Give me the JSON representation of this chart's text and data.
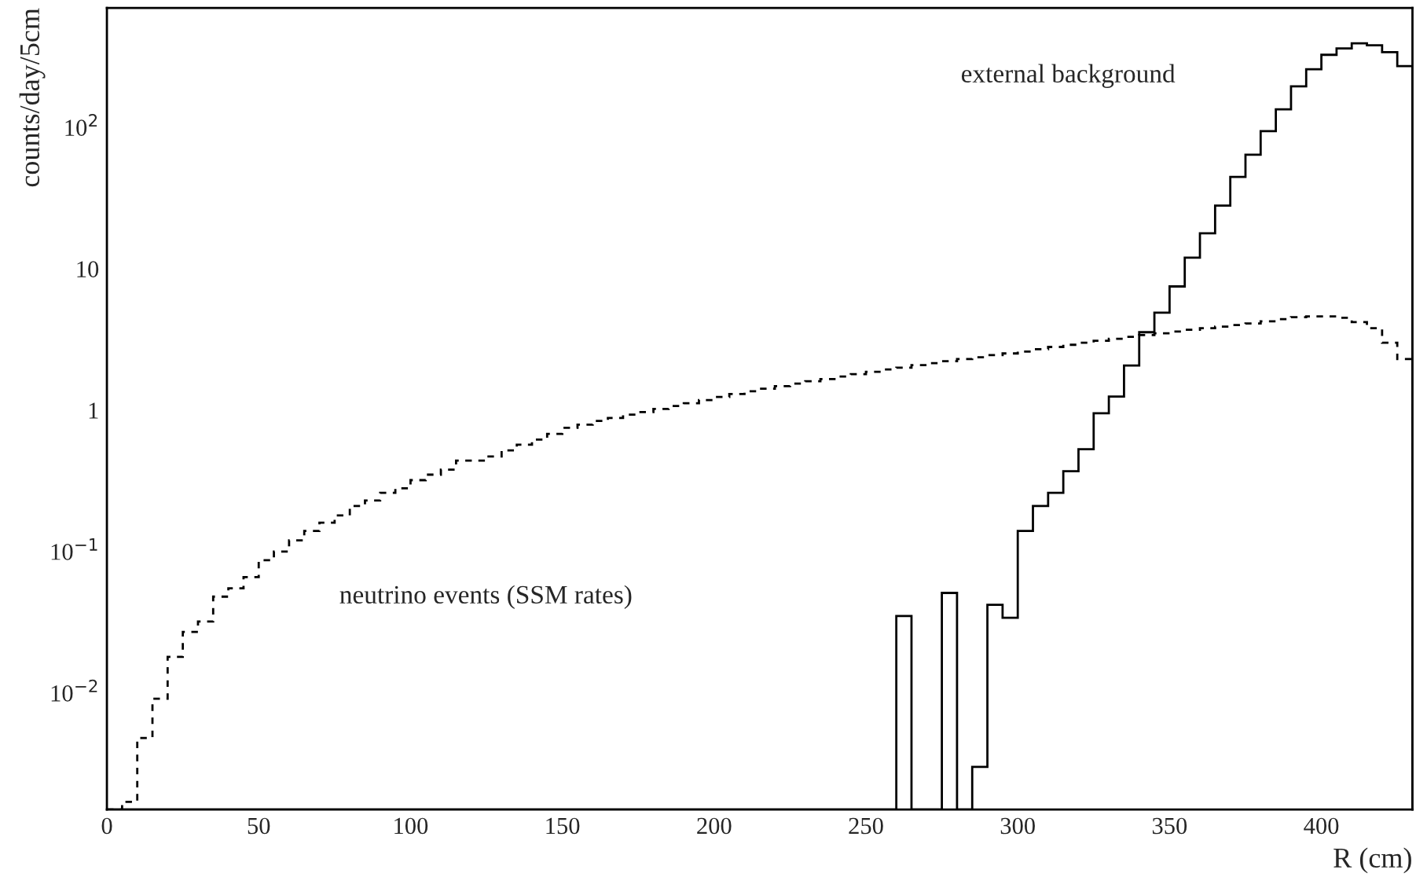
{
  "chart_data": {
    "type": "histogram",
    "xlabel": "R (cm)",
    "ylabel": "counts/day/5cm",
    "bins": [
      0,
      5,
      10,
      15,
      20,
      25,
      30,
      35,
      40,
      45,
      50,
      55,
      60,
      65,
      70,
      75,
      80,
      85,
      90,
      95,
      100,
      105,
      110,
      115,
      120,
      125,
      130,
      135,
      140,
      145,
      150,
      155,
      160,
      165,
      170,
      175,
      180,
      185,
      190,
      195,
      200,
      205,
      210,
      215,
      220,
      225,
      230,
      235,
      240,
      245,
      250,
      255,
      260,
      265,
      270,
      275,
      280,
      285,
      290,
      295,
      300,
      305,
      310,
      315,
      320,
      325,
      330,
      335,
      340,
      345,
      350,
      355,
      360,
      365,
      370,
      375,
      380,
      385,
      390,
      395,
      400,
      405,
      410,
      415,
      420,
      425,
      430
    ],
    "series": [
      {
        "color": "#000000",
        "line_style": "dashed",
        "values": [
          null,
          0.0017,
          0.0048,
          0.0091,
          0.018,
          0.027,
          0.032,
          0.048,
          0.055,
          0.066,
          0.087,
          0.1,
          0.12,
          0.14,
          0.16,
          0.18,
          0.21,
          0.23,
          0.26,
          0.28,
          0.32,
          0.35,
          0.38,
          0.44,
          0.44,
          0.47,
          0.52,
          0.57,
          0.62,
          0.68,
          0.75,
          0.79,
          0.84,
          0.88,
          0.93,
          0.97,
          1.02,
          1.07,
          1.12,
          1.18,
          1.24,
          1.3,
          1.36,
          1.42,
          1.48,
          1.54,
          1.6,
          1.66,
          1.73,
          1.8,
          1.87,
          1.94,
          2.0,
          2.08,
          2.15,
          2.22,
          2.3,
          2.37,
          2.45,
          2.52,
          2.6,
          2.7,
          2.8,
          2.9,
          3.0,
          3.1,
          3.2,
          3.3,
          3.4,
          3.5,
          3.6,
          3.7,
          3.8,
          3.9,
          4.0,
          4.1,
          4.25,
          4.4,
          4.55,
          4.6,
          4.6,
          4.5,
          4.2,
          3.8,
          3.0,
          2.3
        ]
      },
      {
        "color": "#000000",
        "line_style": "solid",
        "values": [
          null,
          null,
          null,
          null,
          null,
          null,
          null,
          null,
          null,
          null,
          null,
          null,
          null,
          null,
          null,
          null,
          null,
          null,
          null,
          null,
          null,
          null,
          null,
          null,
          null,
          null,
          null,
          null,
          null,
          null,
          null,
          null,
          null,
          null,
          null,
          null,
          null,
          null,
          null,
          null,
          null,
          null,
          null,
          null,
          null,
          null,
          null,
          null,
          null,
          null,
          null,
          null,
          0.035,
          null,
          null,
          0.051,
          null,
          0.003,
          0.042,
          0.034,
          0.14,
          0.21,
          0.26,
          0.37,
          0.53,
          0.95,
          1.25,
          2.07,
          3.56,
          4.9,
          7.5,
          12,
          17.8,
          28,
          44.6,
          64,
          94,
          134,
          195,
          258,
          326,
          362,
          393,
          381,
          340,
          271
        ]
      }
    ],
    "annotations": [
      "external background",
      "neutrino events (SSM rates)"
    ],
    "log": "y",
    "grid": false,
    "legend": false,
    "xlim": [
      0,
      430
    ],
    "ylim": [
      0.0015,
      700
    ],
    "xticks": [
      0,
      50,
      100,
      150,
      200,
      250,
      300,
      350,
      400
    ],
    "yticks": [
      {
        "value": 0.01,
        "label": "10$^{−2}$"
      },
      {
        "value": 0.1,
        "label": "10$^{−1}$"
      },
      1,
      10,
      {
        "value": 100,
        "label": "10$^{2}$"
      }
    ]
  }
}
